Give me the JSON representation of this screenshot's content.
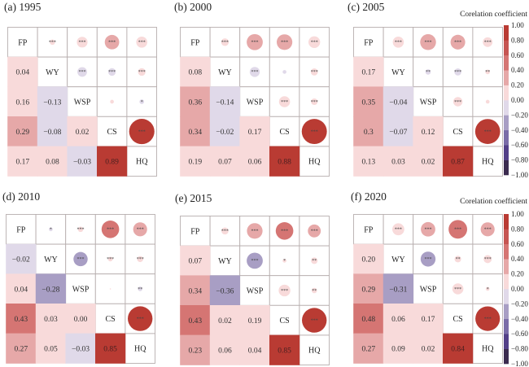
{
  "colorbar": {
    "title": "Corelation coefficient",
    "ticks": [
      "1.00",
      "0.80",
      "0.60",
      "0.40",
      "0.20",
      "0.00",
      "−0.20",
      "−0.40",
      "−0.60",
      "−0.80",
      "−1.00"
    ],
    "range": [
      -1,
      1
    ],
    "colors_low_to_high": [
      "#3B2B4F",
      "#533F88",
      "#7A6CA8",
      "#A89EC4",
      "#E0D9E9",
      "#F8DADA",
      "#E6A8A8",
      "#D57573",
      "#C65552",
      "#B93B33"
    ]
  },
  "chart_data": [
    {
      "type": "heatmap",
      "title": "(a) 1995",
      "variables": [
        "FP",
        "WY",
        "WSP",
        "CS",
        "HQ"
      ],
      "lower_triangle": "coefficient values",
      "upper_triangle": "circles sized by |r| with significance marks",
      "colorbar": false,
      "correlations": [
        {
          "pair": [
            "FP",
            "WY"
          ],
          "r": 0.04,
          "label": "0.04",
          "sig": "***"
        },
        {
          "pair": [
            "FP",
            "WSP"
          ],
          "r": 0.16,
          "label": "0.16",
          "sig": "***"
        },
        {
          "pair": [
            "FP",
            "CS"
          ],
          "r": 0.29,
          "label": "0.29",
          "sig": "***"
        },
        {
          "pair": [
            "FP",
            "HQ"
          ],
          "r": 0.17,
          "label": "0.17",
          "sig": "***"
        },
        {
          "pair": [
            "WY",
            "WSP"
          ],
          "r": -0.13,
          "label": "−0.13",
          "sig": "***"
        },
        {
          "pair": [
            "WY",
            "CS"
          ],
          "r": -0.08,
          "label": "−0.08",
          "sig": "***"
        },
        {
          "pair": [
            "WY",
            "HQ"
          ],
          "r": 0.08,
          "label": "0.08",
          "sig": "***"
        },
        {
          "pair": [
            "WSP",
            "CS"
          ],
          "r": 0.02,
          "label": "0.02",
          "sig": ""
        },
        {
          "pair": [
            "WSP",
            "HQ"
          ],
          "r": -0.03,
          "label": "−0.03",
          "sig": "*"
        },
        {
          "pair": [
            "CS",
            "HQ"
          ],
          "r": 0.89,
          "label": "0.89",
          "sig": "***"
        }
      ]
    },
    {
      "type": "heatmap",
      "title": "(b) 2000",
      "variables": [
        "FP",
        "WY",
        "WSP",
        "CS",
        "HQ"
      ],
      "colorbar": false,
      "correlations": [
        {
          "pair": [
            "FP",
            "WY"
          ],
          "r": 0.08,
          "label": "0.08",
          "sig": "***"
        },
        {
          "pair": [
            "FP",
            "WSP"
          ],
          "r": 0.36,
          "label": "0.36",
          "sig": "***"
        },
        {
          "pair": [
            "FP",
            "CS"
          ],
          "r": 0.34,
          "label": "0.34",
          "sig": "***"
        },
        {
          "pair": [
            "FP",
            "HQ"
          ],
          "r": 0.19,
          "label": "0.19",
          "sig": "***"
        },
        {
          "pair": [
            "WY",
            "WSP"
          ],
          "r": -0.14,
          "label": "−0.14",
          "sig": "***"
        },
        {
          "pair": [
            "WY",
            "CS"
          ],
          "r": -0.02,
          "label": "−0.02",
          "sig": ""
        },
        {
          "pair": [
            "WY",
            "HQ"
          ],
          "r": 0.07,
          "label": "0.07",
          "sig": "***"
        },
        {
          "pair": [
            "WSP",
            "CS"
          ],
          "r": 0.17,
          "label": "0.17",
          "sig": "***"
        },
        {
          "pair": [
            "WSP",
            "HQ"
          ],
          "r": 0.06,
          "label": "0.06",
          "sig": "***"
        },
        {
          "pair": [
            "CS",
            "HQ"
          ],
          "r": 0.88,
          "label": "0.88",
          "sig": "***"
        }
      ]
    },
    {
      "type": "heatmap",
      "title": "(c) 2005",
      "variables": [
        "FP",
        "WY",
        "WSP",
        "CS",
        "HQ"
      ],
      "colorbar": true,
      "correlations": [
        {
          "pair": [
            "FP",
            "WY"
          ],
          "r": 0.17,
          "label": "0.17",
          "sig": "***"
        },
        {
          "pair": [
            "FP",
            "WSP"
          ],
          "r": 0.35,
          "label": "0.35",
          "sig": "***"
        },
        {
          "pair": [
            "FP",
            "CS"
          ],
          "r": 0.3,
          "label": "0.3",
          "sig": "***"
        },
        {
          "pair": [
            "FP",
            "HQ"
          ],
          "r": 0.13,
          "label": "0.13",
          "sig": "***"
        },
        {
          "pair": [
            "WY",
            "WSP"
          ],
          "r": -0.04,
          "label": "−0.04",
          "sig": "**"
        },
        {
          "pair": [
            "WY",
            "CS"
          ],
          "r": -0.07,
          "label": "−0.07",
          "sig": "***"
        },
        {
          "pair": [
            "WY",
            "HQ"
          ],
          "r": 0.03,
          "label": "0.03",
          "sig": "**"
        },
        {
          "pair": [
            "WSP",
            "CS"
          ],
          "r": 0.12,
          "label": "0.12",
          "sig": "***"
        },
        {
          "pair": [
            "WSP",
            "HQ"
          ],
          "r": 0.02,
          "label": "0.02",
          "sig": ""
        },
        {
          "pair": [
            "CS",
            "HQ"
          ],
          "r": 0.87,
          "label": "0.87",
          "sig": "***"
        }
      ]
    },
    {
      "type": "heatmap",
      "title": "(d) 2010",
      "variables": [
        "FP",
        "WY",
        "WSP",
        "CS",
        "HQ"
      ],
      "colorbar": false,
      "correlations": [
        {
          "pair": [
            "FP",
            "WY"
          ],
          "r": -0.02,
          "label": "−0.02",
          "sig": "*"
        },
        {
          "pair": [
            "FP",
            "WSP"
          ],
          "r": 0.04,
          "label": "0.04",
          "sig": "***"
        },
        {
          "pair": [
            "FP",
            "CS"
          ],
          "r": 0.43,
          "label": "0.43",
          "sig": "***"
        },
        {
          "pair": [
            "FP",
            "HQ"
          ],
          "r": 0.27,
          "label": "0.27",
          "sig": "***"
        },
        {
          "pair": [
            "WY",
            "WSP"
          ],
          "r": -0.28,
          "label": "−0.28",
          "sig": "***"
        },
        {
          "pair": [
            "WY",
            "CS"
          ],
          "r": 0.03,
          "label": "0.03",
          "sig": "***"
        },
        {
          "pair": [
            "WY",
            "HQ"
          ],
          "r": 0.05,
          "label": "0.05",
          "sig": "***"
        },
        {
          "pair": [
            "WSP",
            "CS"
          ],
          "r": 0.0,
          "label": "0.00",
          "sig": ""
        },
        {
          "pair": [
            "WSP",
            "HQ"
          ],
          "r": -0.03,
          "label": "−0.03",
          "sig": "**"
        },
        {
          "pair": [
            "CS",
            "HQ"
          ],
          "r": 0.85,
          "label": "0.85",
          "sig": "***"
        }
      ]
    },
    {
      "type": "heatmap",
      "title": "(e) 2015",
      "variables": [
        "FP",
        "WY",
        "WSP",
        "CS",
        "HQ"
      ],
      "colorbar": false,
      "correlations": [
        {
          "pair": [
            "FP",
            "WY"
          ],
          "r": 0.07,
          "label": "0.07",
          "sig": "***"
        },
        {
          "pair": [
            "FP",
            "WSP"
          ],
          "r": 0.34,
          "label": "0.34",
          "sig": "***"
        },
        {
          "pair": [
            "FP",
            "CS"
          ],
          "r": 0.43,
          "label": "0.43",
          "sig": "***"
        },
        {
          "pair": [
            "FP",
            "HQ"
          ],
          "r": 0.23,
          "label": "0.23",
          "sig": "***"
        },
        {
          "pair": [
            "WY",
            "WSP"
          ],
          "r": -0.36,
          "label": "−0.36",
          "sig": "***"
        },
        {
          "pair": [
            "WY",
            "CS"
          ],
          "r": 0.02,
          "label": "0.02",
          "sig": "*"
        },
        {
          "pair": [
            "WY",
            "HQ"
          ],
          "r": 0.06,
          "label": "0.06",
          "sig": "**"
        },
        {
          "pair": [
            "WSP",
            "CS"
          ],
          "r": 0.19,
          "label": "0.19",
          "sig": "***"
        },
        {
          "pair": [
            "WSP",
            "HQ"
          ],
          "r": 0.04,
          "label": "0.04",
          "sig": "**"
        },
        {
          "pair": [
            "CS",
            "HQ"
          ],
          "r": 0.85,
          "label": "0.85",
          "sig": "***"
        }
      ]
    },
    {
      "type": "heatmap",
      "title": "(f) 2020",
      "variables": [
        "FP",
        "WY",
        "WSP",
        "CS",
        "HQ"
      ],
      "colorbar": true,
      "correlations": [
        {
          "pair": [
            "FP",
            "WY"
          ],
          "r": 0.2,
          "label": "0.20",
          "sig": "***"
        },
        {
          "pair": [
            "FP",
            "WSP"
          ],
          "r": 0.29,
          "label": "0.29",
          "sig": "***"
        },
        {
          "pair": [
            "FP",
            "CS"
          ],
          "r": 0.48,
          "label": "0.48",
          "sig": "***"
        },
        {
          "pair": [
            "FP",
            "HQ"
          ],
          "r": 0.27,
          "label": "0.27",
          "sig": "***"
        },
        {
          "pair": [
            "WY",
            "WSP"
          ],
          "r": -0.31,
          "label": "−0.31",
          "sig": "***"
        },
        {
          "pair": [
            "WY",
            "CS"
          ],
          "r": 0.06,
          "label": "0.06",
          "sig": "**"
        },
        {
          "pair": [
            "WY",
            "HQ"
          ],
          "r": 0.09,
          "label": "0.09",
          "sig": "***"
        },
        {
          "pair": [
            "WSP",
            "CS"
          ],
          "r": 0.17,
          "label": "0.17",
          "sig": "***"
        },
        {
          "pair": [
            "WSP",
            "HQ"
          ],
          "r": 0.02,
          "label": "0.02",
          "sig": "*"
        },
        {
          "pair": [
            "CS",
            "HQ"
          ],
          "r": 0.84,
          "label": "0.84",
          "sig": "***"
        }
      ]
    }
  ]
}
